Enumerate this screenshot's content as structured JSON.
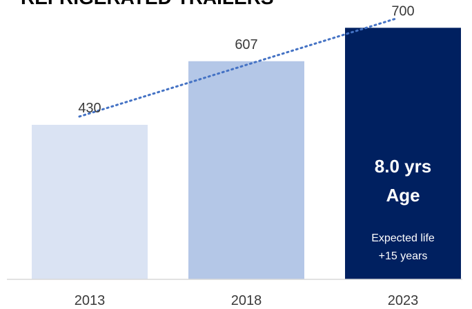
{
  "chart_data": {
    "type": "bar",
    "title": "REFRIGERATED TRAILERS",
    "categories": [
      "2013",
      "2018",
      "2023"
    ],
    "values": [
      430,
      607,
      700
    ],
    "bar_colors": [
      "#dae3f3",
      "#b4c7e7",
      "#002060"
    ],
    "trend_line": {
      "style": "dotted",
      "color": "#4472c4",
      "values": [
        430,
        607,
        700
      ]
    },
    "xlabel": "",
    "ylabel": "",
    "grid": false,
    "annotation": {
      "category": "2023",
      "headline": [
        "8.0 yrs",
        "Age"
      ],
      "note": [
        "Expected life",
        "+15 years"
      ]
    }
  }
}
